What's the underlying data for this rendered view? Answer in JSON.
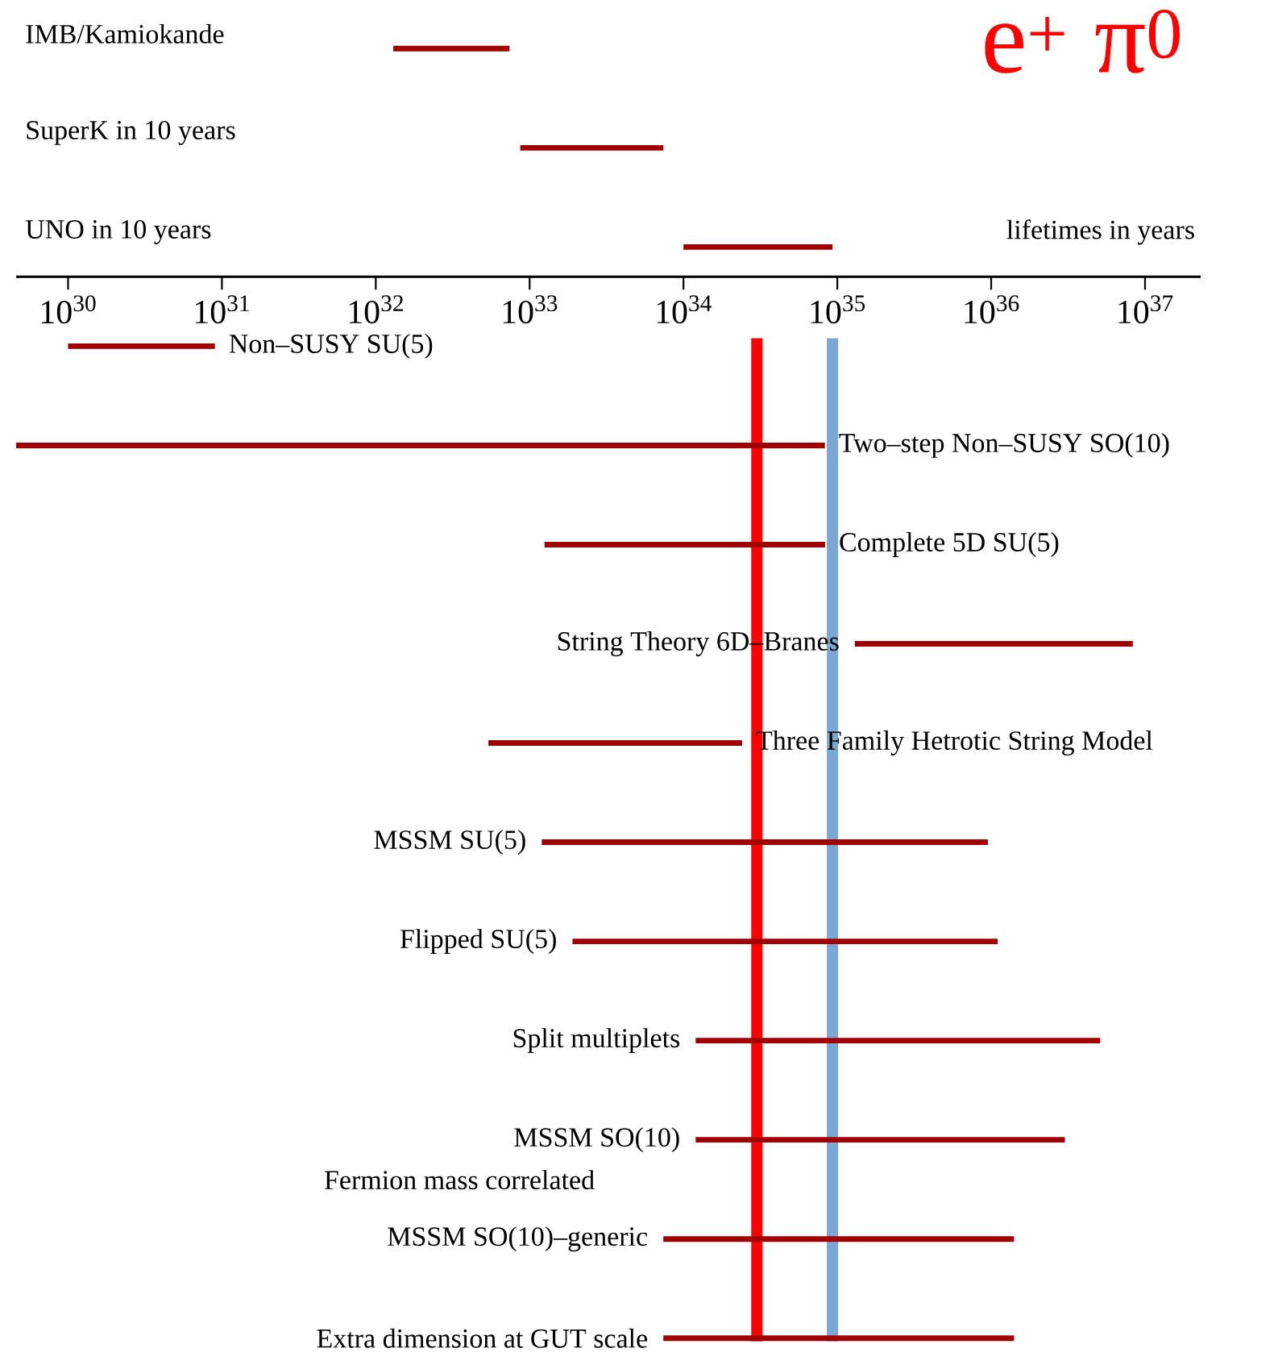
{
  "chart_data": {
    "type": "bar",
    "orientation": "horizontal",
    "log": "x",
    "title": "e$^{+}$ π$^{0}$",
    "categories": [
      "IMB/Kamiokande",
      "SuperK in 10 years",
      "UNO in 10 years",
      "Non–SUSY SU(5)",
      "Two–step Non–SUSY SO(10)",
      "Complete 5D SU(5)",
      "String Theory 6D–Branes",
      "Three Family Hetrotic String Model",
      "MSSM SU(5)",
      "Flipped SU(5)",
      "Split multiplets",
      "MSSM SO(10)",
      "MSSM SO(10)–generic",
      "Extra dimension at GUT scale"
    ],
    "base": [
      1.3e+32,
      8.7e+32,
      1e+34,
      1e+30,
      4.6e+29,
      1.25e+33,
      1.3e+35,
      5.4e+32,
      1.2e+33,
      1.9e+33,
      1.2e+34,
      1.2e+34,
      7.4e+33,
      7.4e+33
    ],
    "values": [
      6.1e+32,
      6.53e+33,
      8.3e+34,
      8e+30,
      8.3e+34,
      8.2e+34,
      8.2e+36,
      2.35e+34,
      9.5e+35,
      1.1e+36,
      5.1e+36,
      3e+36,
      1.4e+36,
      1.4e+36
    ],
    "color": "#a00000",
    "xlim": [
      4.6e+29,
      2.3e+37
    ],
    "xticks": [
      {
        "value": 1e+30,
        "label": "10$^{30}$"
      },
      {
        "value": 1e+31,
        "label": "10$^{31}$"
      },
      {
        "value": 1e+32,
        "label": "10$^{32}$"
      },
      {
        "value": 1e+33,
        "label": "10$^{33}$"
      },
      {
        "value": 1e+34,
        "label": "10$^{34}$"
      },
      {
        "value": 1e+35,
        "label": "10$^{35}$"
      },
      {
        "value": 1e+36,
        "label": "10$^{36}$"
      },
      {
        "value": 1e+37,
        "label": "10$^{37}$"
      }
    ],
    "tick_labels": "x",
    "ref_lines": [
      {
        "axis": "x",
        "value": 3e+34,
        "color": "#ff0000"
      },
      {
        "axis": "x",
        "value": 9.3e+34,
        "color": "#7ba7d4"
      }
    ],
    "annotations": [
      "lifetimes in years",
      "Fermion mass correlated"
    ]
  }
}
